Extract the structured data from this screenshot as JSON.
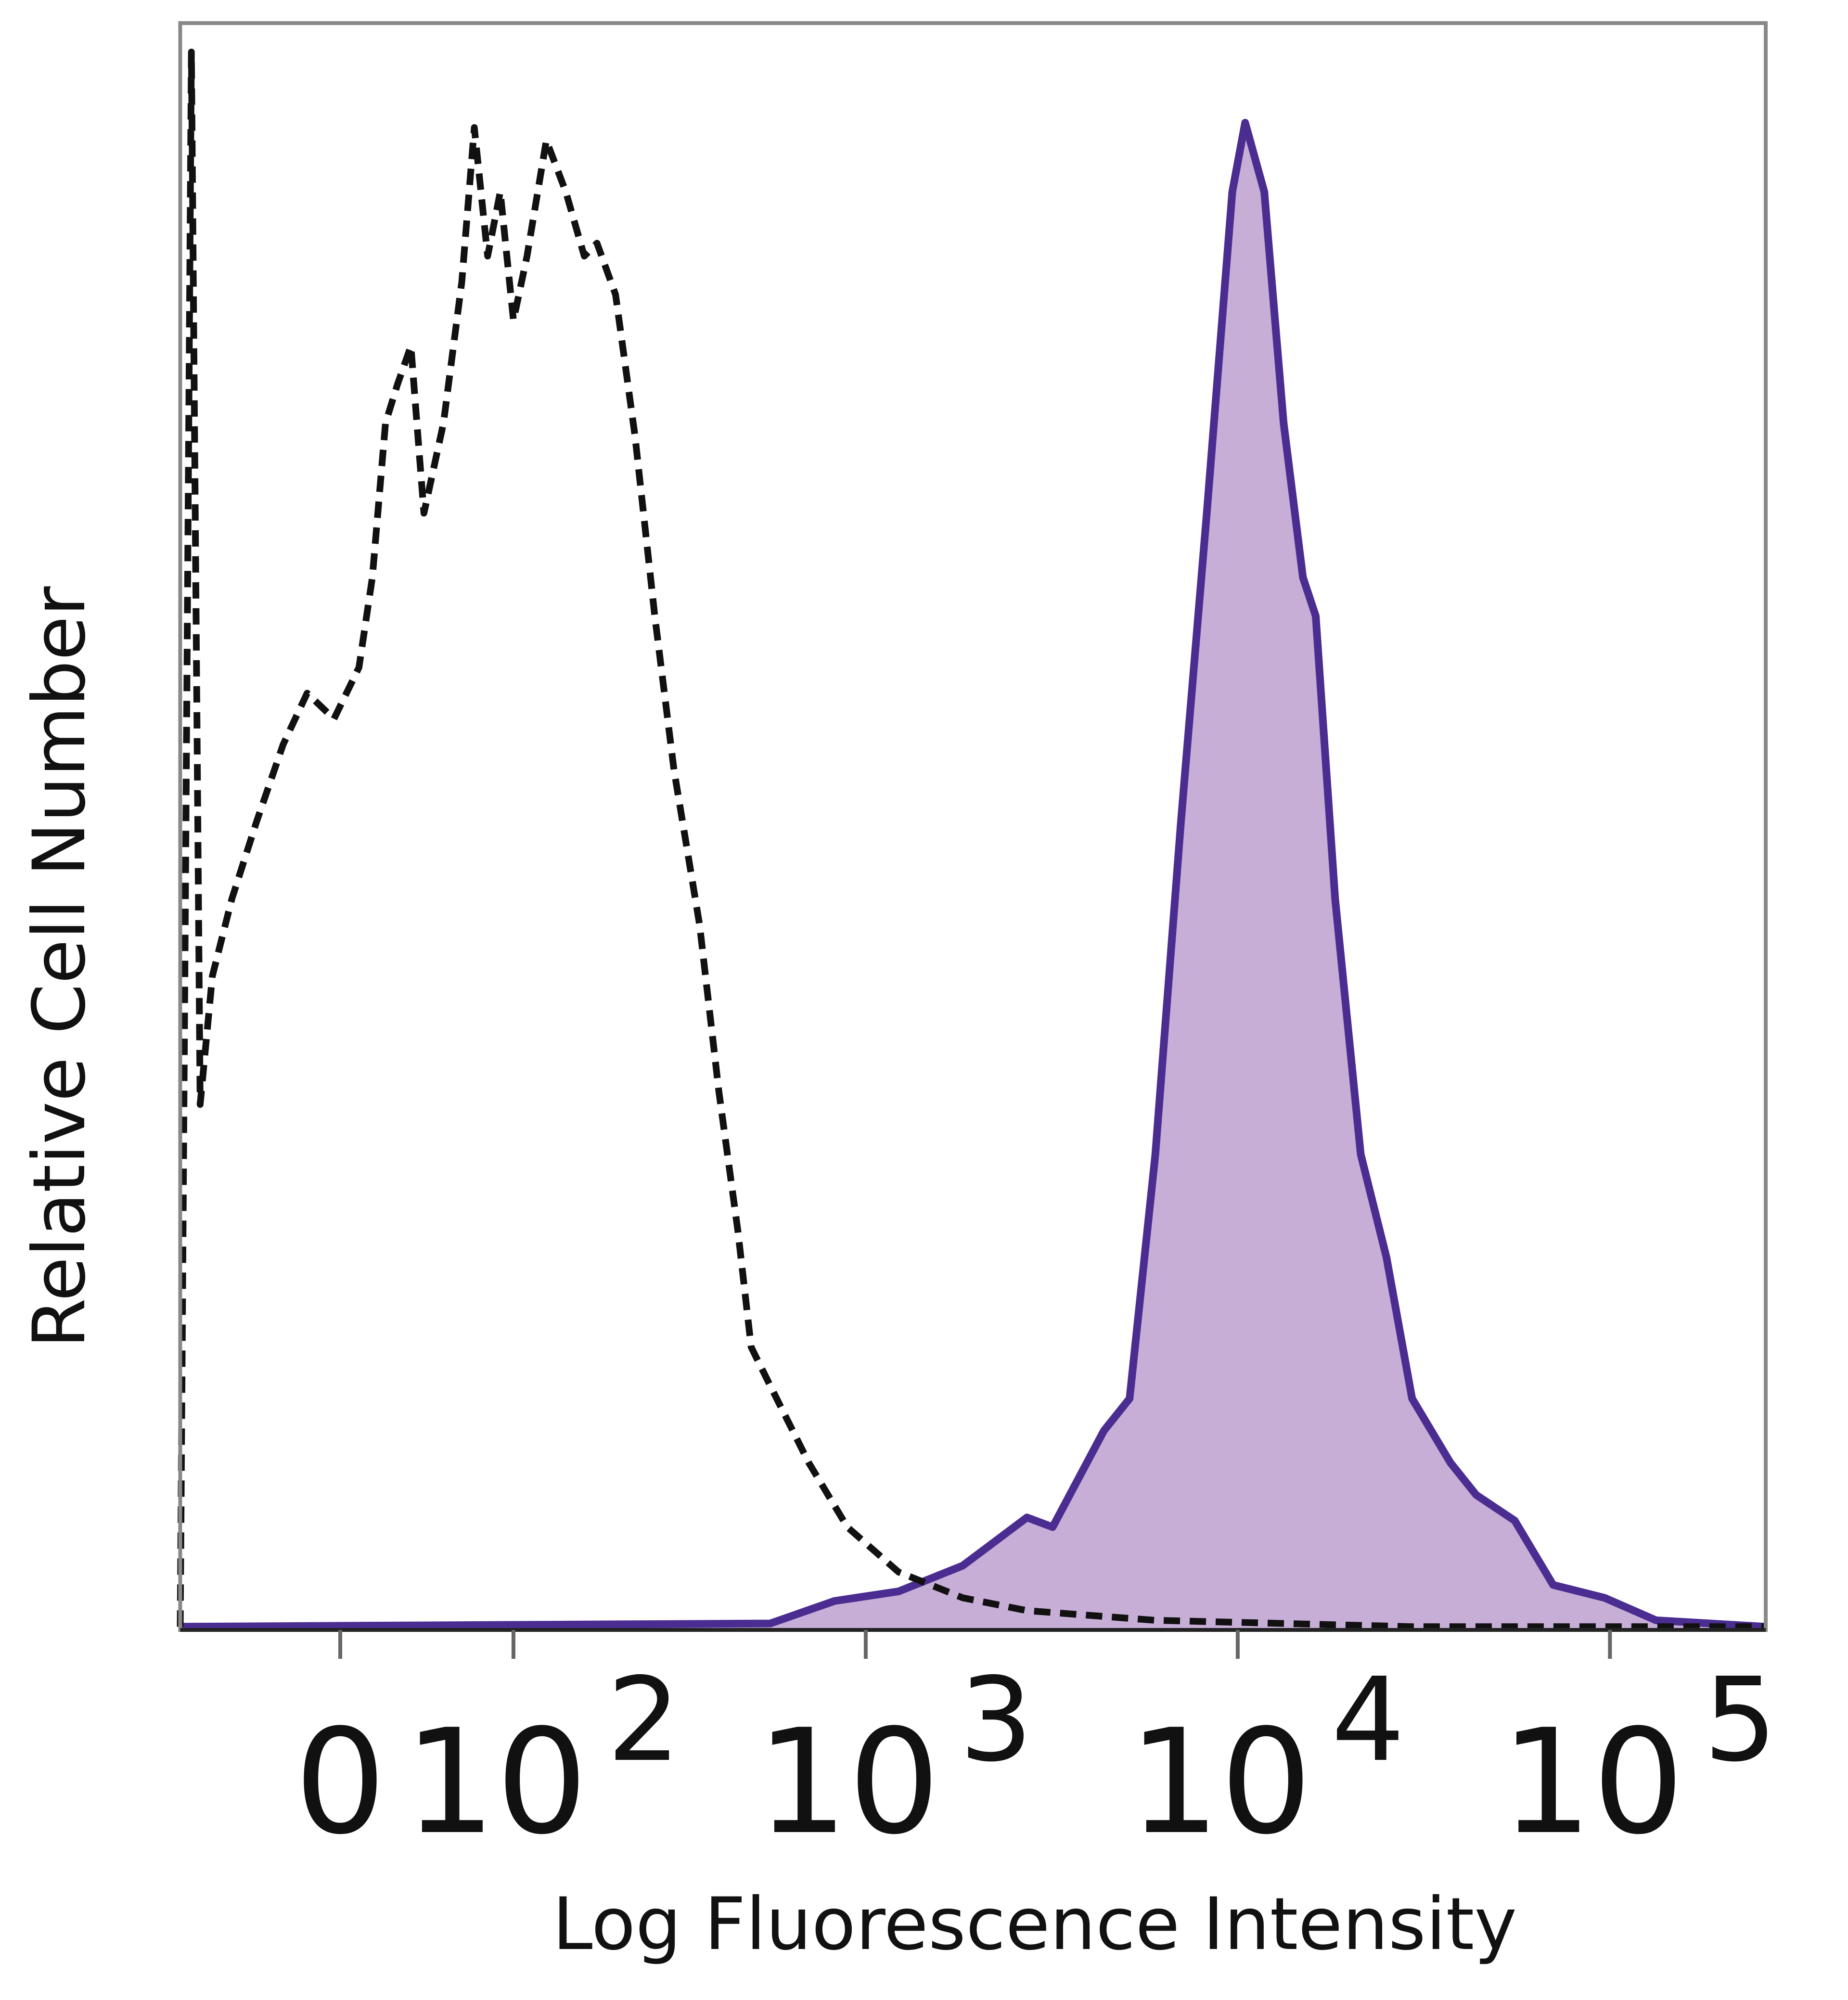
{
  "chart_data": {
    "type": "histogram-overlay",
    "xlabel": "Log Fluorescence Intensity",
    "ylabel": "Relative Cell Number",
    "xscale": "biexponential",
    "xlim": [
      -90,
      262144
    ],
    "ylim": [
      0,
      100
    ],
    "xticks": [
      0,
      {
        "value": 100,
        "label": "10",
        "sup": "2"
      },
      {
        "value": 1000,
        "label": "10",
        "sup": "3"
      },
      {
        "value": 10000,
        "label": "10",
        "sup": "4"
      },
      {
        "value": 100000,
        "label": "10",
        "sup": "5"
      }
    ],
    "series": [
      {
        "style": "dashed",
        "color": "#111111",
        "x": [
          -90,
          -82,
          -76,
          -68,
          -56,
          -42,
          -28,
          -16,
          -3,
          9,
          15.5,
          22,
          28,
          35,
          42,
          53,
          64,
          72,
          81,
          90,
          100,
          111,
          128,
          147,
          167,
          182,
          206,
          234,
          266,
          301,
          354,
          400,
          451,
          490,
          552,
          702,
          892,
          1226,
          1824,
          2714,
          6006,
          13285,
          29410,
          262144
        ],
        "values": [
          0.2,
          98.2,
          32.7,
          40.7,
          45.5,
          50.3,
          55.1,
          58.3,
          56.7,
          59.9,
          65.5,
          75.1,
          77.5,
          79.9,
          69.5,
          75.1,
          83.9,
          93.5,
          85.5,
          89.5,
          81.5,
          85.5,
          92.7,
          89.5,
          85.5,
          86.3,
          83.1,
          74.3,
          63.1,
          53.5,
          43.9,
          33.5,
          24.8,
          17.6,
          15.2,
          10.4,
          6.4,
          3.6,
          2.0,
          1.2,
          0.6,
          0.4,
          0.2,
          0.2
        ]
      },
      {
        "style": "filled",
        "color": "#4b2d91",
        "fill": "#c7aed6",
        "x": [
          -90,
          552,
          823,
          1226,
          1824,
          2714,
          3182,
          4369,
          5122,
          6006,
          7038,
          8257,
          9669,
          10468,
          11787,
          13285,
          14969,
          16203,
          18267,
          21402,
          25088,
          29410,
          37295,
          43735,
          55484,
          70368,
          96690,
          133006,
          262144
        ],
        "values": [
          0.2,
          0.4,
          1.8,
          2.4,
          4.0,
          7.0,
          6.4,
          12.4,
          14.4,
          29.6,
          50.3,
          69.5,
          89.5,
          93.8,
          89.5,
          75.1,
          65.5,
          63.1,
          45.5,
          29.6,
          23.2,
          14.4,
          10.4,
          8.4,
          6.8,
          2.8,
          2.0,
          0.6,
          0.2
        ]
      }
    ]
  }
}
